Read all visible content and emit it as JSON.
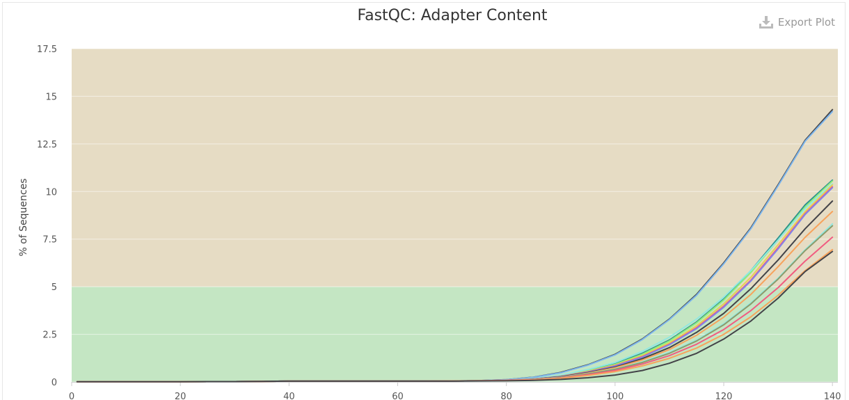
{
  "title": "FastQC: Adapter Content",
  "export_label": "Export Plot",
  "colors": {
    "warn_band": "#e6dcc4",
    "pass_band": "#c4e6c3",
    "grid": "#f0ece4",
    "axis_text": "#555555"
  },
  "chart_data": {
    "type": "line",
    "title": "FastQC: Adapter Content",
    "xlabel": "",
    "ylabel": "% of Sequences",
    "xlim": [
      0,
      141
    ],
    "ylim": [
      0,
      17.5
    ],
    "x_ticks": [
      0,
      20,
      40,
      60,
      80,
      100,
      120,
      140
    ],
    "y_ticks": [
      0,
      2.5,
      5,
      7.5,
      10,
      12.5,
      15,
      17.5
    ],
    "y_tick_labels": [
      "0",
      "2.5",
      "5",
      "7.5",
      "10",
      "12.5",
      "15",
      "17.5"
    ],
    "bands": [
      {
        "from": 0,
        "to": 5,
        "color": "#c4e6c3"
      },
      {
        "from": 5,
        "to": 17.5,
        "color": "#e6dcc4"
      }
    ],
    "x": [
      1,
      5,
      10,
      15,
      20,
      25,
      30,
      35,
      40,
      45,
      50,
      55,
      60,
      65,
      70,
      75,
      80,
      85,
      90,
      95,
      100,
      105,
      110,
      115,
      120,
      125,
      130,
      135,
      140
    ],
    "series": [
      {
        "color": "#434348",
        "values": [
          0.01,
          0.01,
          0.01,
          0.01,
          0.01,
          0.02,
          0.02,
          0.03,
          0.04,
          0.04,
          0.04,
          0.05,
          0.05,
          0.05,
          0.05,
          0.07,
          0.12,
          0.25,
          0.5,
          0.9,
          1.45,
          2.25,
          3.3,
          4.6,
          6.25,
          8.1,
          10.35,
          12.7,
          14.3
        ]
      },
      {
        "color": "#7cb5ec",
        "values": [
          0.01,
          0.01,
          0.01,
          0.01,
          0.01,
          0.02,
          0.02,
          0.03,
          0.04,
          0.04,
          0.04,
          0.05,
          0.05,
          0.05,
          0.05,
          0.07,
          0.12,
          0.24,
          0.48,
          0.88,
          1.42,
          2.22,
          3.27,
          4.55,
          6.2,
          8.05,
          10.3,
          12.65,
          14.2
        ]
      },
      {
        "color": "#2b908f",
        "values": [
          0.01,
          0.01,
          0.01,
          0.01,
          0.01,
          0.02,
          0.02,
          0.03,
          0.04,
          0.04,
          0.04,
          0.04,
          0.04,
          0.04,
          0.05,
          0.06,
          0.09,
          0.17,
          0.33,
          0.6,
          0.95,
          1.5,
          2.2,
          3.15,
          4.35,
          5.85,
          7.55,
          9.3,
          10.6
        ]
      },
      {
        "color": "#90ed7d",
        "values": [
          0.01,
          0.01,
          0.01,
          0.01,
          0.01,
          0.02,
          0.02,
          0.03,
          0.04,
          0.04,
          0.04,
          0.04,
          0.04,
          0.04,
          0.05,
          0.06,
          0.09,
          0.16,
          0.32,
          0.58,
          0.92,
          1.45,
          2.15,
          3.1,
          4.3,
          5.75,
          7.45,
          9.2,
          10.55
        ]
      },
      {
        "color": "#91e8e1",
        "values": [
          0.01,
          0.01,
          0.01,
          0.01,
          0.01,
          0.02,
          0.02,
          0.03,
          0.04,
          0.04,
          0.04,
          0.04,
          0.04,
          0.04,
          0.05,
          0.06,
          0.1,
          0.18,
          0.36,
          0.65,
          1.02,
          1.6,
          2.35,
          3.3,
          4.45,
          5.85,
          7.45,
          9.1,
          10.4
        ]
      },
      {
        "color": "#e4d354",
        "values": [
          0.01,
          0.01,
          0.01,
          0.01,
          0.01,
          0.02,
          0.02,
          0.03,
          0.04,
          0.04,
          0.04,
          0.04,
          0.04,
          0.04,
          0.05,
          0.06,
          0.09,
          0.16,
          0.3,
          0.55,
          0.88,
          1.38,
          2.05,
          2.95,
          4.1,
          5.5,
          7.2,
          8.95,
          10.35
        ]
      },
      {
        "color": "#f15c80",
        "values": [
          0.01,
          0.01,
          0.01,
          0.01,
          0.01,
          0.02,
          0.02,
          0.03,
          0.04,
          0.04,
          0.04,
          0.04,
          0.04,
          0.04,
          0.05,
          0.06,
          0.09,
          0.15,
          0.29,
          0.53,
          0.85,
          1.33,
          1.98,
          2.85,
          3.98,
          5.35,
          7.05,
          8.85,
          10.25
        ]
      },
      {
        "color": "#8085e9",
        "values": [
          0.01,
          0.01,
          0.01,
          0.01,
          0.01,
          0.02,
          0.02,
          0.03,
          0.04,
          0.04,
          0.04,
          0.04,
          0.04,
          0.04,
          0.05,
          0.06,
          0.09,
          0.15,
          0.28,
          0.52,
          0.83,
          1.3,
          1.95,
          2.8,
          3.92,
          5.3,
          6.98,
          8.8,
          10.2
        ]
      },
      {
        "color": "#434348",
        "values": [
          0.01,
          0.01,
          0.01,
          0.01,
          0.01,
          0.02,
          0.02,
          0.03,
          0.04,
          0.04,
          0.04,
          0.04,
          0.04,
          0.04,
          0.05,
          0.06,
          0.08,
          0.14,
          0.27,
          0.49,
          0.78,
          1.22,
          1.8,
          2.6,
          3.6,
          4.9,
          6.4,
          8.05,
          9.5
        ]
      },
      {
        "color": "#f7a35c",
        "values": [
          0.01,
          0.01,
          0.01,
          0.01,
          0.01,
          0.02,
          0.02,
          0.03,
          0.04,
          0.04,
          0.04,
          0.04,
          0.04,
          0.04,
          0.05,
          0.06,
          0.08,
          0.13,
          0.25,
          0.46,
          0.74,
          1.15,
          1.7,
          2.45,
          3.4,
          4.6,
          6.05,
          7.6,
          8.95
        ]
      },
      {
        "color": "#91e8e1",
        "values": [
          0.01,
          0.01,
          0.01,
          0.01,
          0.01,
          0.02,
          0.02,
          0.03,
          0.04,
          0.04,
          0.04,
          0.04,
          0.04,
          0.04,
          0.05,
          0.06,
          0.08,
          0.13,
          0.24,
          0.43,
          0.68,
          1.05,
          1.55,
          2.2,
          3.05,
          4.15,
          5.45,
          6.95,
          8.3
        ]
      },
      {
        "color": "#8d9b6a",
        "values": [
          0.01,
          0.01,
          0.01,
          0.01,
          0.01,
          0.02,
          0.02,
          0.03,
          0.04,
          0.04,
          0.04,
          0.04,
          0.04,
          0.04,
          0.05,
          0.06,
          0.08,
          0.13,
          0.23,
          0.42,
          0.66,
          1.02,
          1.5,
          2.15,
          3.0,
          4.1,
          5.4,
          6.9,
          8.2
        ]
      },
      {
        "color": "#f15c80",
        "values": [
          0.01,
          0.01,
          0.01,
          0.01,
          0.01,
          0.02,
          0.02,
          0.03,
          0.04,
          0.04,
          0.04,
          0.04,
          0.04,
          0.04,
          0.05,
          0.06,
          0.08,
          0.12,
          0.21,
          0.38,
          0.6,
          0.94,
          1.38,
          1.98,
          2.75,
          3.75,
          4.95,
          6.35,
          7.6
        ]
      },
      {
        "color": "#f7a35c",
        "values": [
          0.01,
          0.01,
          0.01,
          0.01,
          0.01,
          0.02,
          0.02,
          0.03,
          0.04,
          0.04,
          0.04,
          0.04,
          0.04,
          0.04,
          0.05,
          0.06,
          0.07,
          0.11,
          0.19,
          0.34,
          0.54,
          0.84,
          1.24,
          1.78,
          2.5,
          3.42,
          4.55,
          5.85,
          6.95
        ]
      },
      {
        "color": "#434348",
        "values": [
          0.01,
          0.01,
          0.01,
          0.01,
          0.01,
          0.02,
          0.02,
          0.03,
          0.04,
          0.04,
          0.04,
          0.04,
          0.04,
          0.04,
          0.04,
          0.05,
          0.06,
          0.08,
          0.13,
          0.22,
          0.36,
          0.6,
          0.98,
          1.5,
          2.25,
          3.2,
          4.4,
          5.8,
          6.85
        ]
      }
    ]
  }
}
